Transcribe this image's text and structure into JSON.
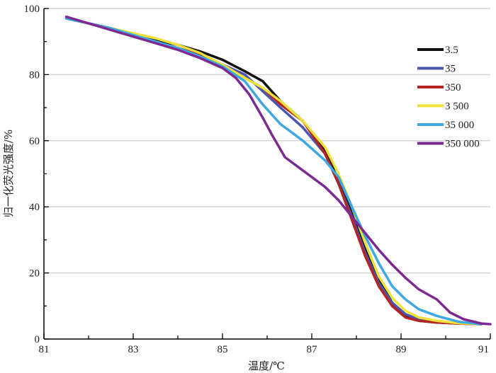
{
  "chart_data": {
    "type": "line",
    "title": "",
    "xlabel": "温度/℃",
    "ylabel": "归一化荧光强度/%",
    "xlim": [
      81,
      91
    ],
    "ylim": [
      0,
      100
    ],
    "x_ticks": [
      81,
      83,
      85,
      87,
      89,
      91
    ],
    "y_ticks": [
      0,
      20,
      40,
      60,
      80,
      100
    ],
    "grid": "horizontal",
    "legend_position": "right",
    "colors": {
      "grid": "#d4d4d4",
      "axis": "#000000"
    },
    "series": [
      {
        "name": "3.5",
        "color": "#111111",
        "points": [
          [
            81.5,
            97
          ],
          [
            82,
            95.5
          ],
          [
            82.5,
            94
          ],
          [
            83,
            92
          ],
          [
            83.5,
            90.5
          ],
          [
            84,
            89
          ],
          [
            84.5,
            87
          ],
          [
            85,
            84.5
          ],
          [
            85.5,
            81
          ],
          [
            85.9,
            78
          ],
          [
            86.3,
            72
          ],
          [
            86.8,
            66
          ],
          [
            87.3,
            57
          ],
          [
            87.6,
            48
          ],
          [
            87.9,
            38
          ],
          [
            88.2,
            27
          ],
          [
            88.5,
            18
          ],
          [
            88.8,
            11
          ],
          [
            89.1,
            7
          ],
          [
            89.4,
            5.5
          ],
          [
            89.8,
            5
          ],
          [
            90.3,
            4.7
          ],
          [
            90.8,
            4.5
          ]
        ]
      },
      {
        "name": "35",
        "color": "#4a55b0",
        "points": [
          [
            81.5,
            97
          ],
          [
            82,
            95.5
          ],
          [
            82.5,
            94
          ],
          [
            83,
            92
          ],
          [
            83.5,
            90
          ],
          [
            84,
            88
          ],
          [
            84.5,
            86
          ],
          [
            85,
            83
          ],
          [
            85.5,
            80
          ],
          [
            85.9,
            75
          ],
          [
            86.3,
            70
          ],
          [
            86.8,
            64
          ],
          [
            87.3,
            56
          ],
          [
            87.6,
            47
          ],
          [
            87.9,
            37
          ],
          [
            88.2,
            26
          ],
          [
            88.5,
            17
          ],
          [
            88.8,
            11
          ],
          [
            89.1,
            7.5
          ],
          [
            89.4,
            6
          ],
          [
            89.8,
            5.2
          ],
          [
            90.3,
            4.8
          ],
          [
            90.8,
            4.5
          ]
        ]
      },
      {
        "name": "350",
        "color": "#b52425",
        "points": [
          [
            81.5,
            97
          ],
          [
            82,
            95.5
          ],
          [
            82.5,
            94
          ],
          [
            83,
            92
          ],
          [
            83.5,
            90
          ],
          [
            84,
            88
          ],
          [
            84.5,
            86
          ],
          [
            85,
            83
          ],
          [
            85.5,
            79
          ],
          [
            85.9,
            76
          ],
          [
            86.3,
            71
          ],
          [
            86.8,
            66
          ],
          [
            87.3,
            56
          ],
          [
            87.6,
            47
          ],
          [
            87.9,
            36
          ],
          [
            88.2,
            25
          ],
          [
            88.5,
            16
          ],
          [
            88.8,
            10
          ],
          [
            89.1,
            6.5
          ],
          [
            89.4,
            5.5
          ],
          [
            89.8,
            5
          ],
          [
            90.3,
            4.7
          ],
          [
            90.8,
            4.5
          ]
        ]
      },
      {
        "name": "3 500",
        "color": "#eee23a",
        "points": [
          [
            81.5,
            97
          ],
          [
            82,
            95.5
          ],
          [
            82.5,
            94
          ],
          [
            83,
            92.5
          ],
          [
            83.5,
            91
          ],
          [
            84,
            89
          ],
          [
            84.5,
            86.5
          ],
          [
            85,
            83
          ],
          [
            85.5,
            79
          ],
          [
            85.9,
            76
          ],
          [
            86.3,
            72
          ],
          [
            86.8,
            66
          ],
          [
            87.3,
            58
          ],
          [
            87.6,
            50
          ],
          [
            87.9,
            40
          ],
          [
            88.2,
            29
          ],
          [
            88.5,
            19
          ],
          [
            88.8,
            12.5
          ],
          [
            89.1,
            8.5
          ],
          [
            89.4,
            6.5
          ],
          [
            89.8,
            5.5
          ],
          [
            90.3,
            4.8
          ],
          [
            90.8,
            4.5
          ]
        ]
      },
      {
        "name": "35 000",
        "color": "#3ea8e0",
        "points": [
          [
            81.5,
            97
          ],
          [
            82,
            95.5
          ],
          [
            82.5,
            94
          ],
          [
            83,
            92
          ],
          [
            83.5,
            90
          ],
          [
            84,
            88
          ],
          [
            84.5,
            85.5
          ],
          [
            85,
            82.5
          ],
          [
            85.5,
            78
          ],
          [
            85.9,
            71
          ],
          [
            86.3,
            65
          ],
          [
            86.8,
            60
          ],
          [
            87.3,
            54
          ],
          [
            87.6,
            49
          ],
          [
            87.9,
            40
          ],
          [
            88.2,
            31
          ],
          [
            88.5,
            23
          ],
          [
            88.8,
            16
          ],
          [
            89.1,
            12
          ],
          [
            89.4,
            9
          ],
          [
            89.8,
            7
          ],
          [
            90.3,
            5.2
          ],
          [
            90.8,
            4.5
          ]
        ]
      },
      {
        "name": "350 000",
        "color": "#7c2a91",
        "points": [
          [
            81.5,
            97.5
          ],
          [
            82,
            95.5
          ],
          [
            82.5,
            93.5
          ],
          [
            83,
            91.5
          ],
          [
            83.5,
            89.5
          ],
          [
            84,
            87.5
          ],
          [
            84.5,
            85
          ],
          [
            85,
            82
          ],
          [
            85.3,
            79
          ],
          [
            85.6,
            74
          ],
          [
            85.9,
            67
          ],
          [
            86.1,
            62
          ],
          [
            86.4,
            55
          ],
          [
            86.8,
            51
          ],
          [
            87.3,
            46
          ],
          [
            87.6,
            42
          ],
          [
            87.9,
            37
          ],
          [
            88.2,
            32
          ],
          [
            88.5,
            27
          ],
          [
            88.8,
            22.5
          ],
          [
            89.1,
            18.5
          ],
          [
            89.4,
            15
          ],
          [
            89.8,
            12
          ],
          [
            90.1,
            8
          ],
          [
            90.4,
            6
          ],
          [
            90.8,
            4.7
          ],
          [
            91,
            4.5
          ]
        ]
      }
    ]
  }
}
